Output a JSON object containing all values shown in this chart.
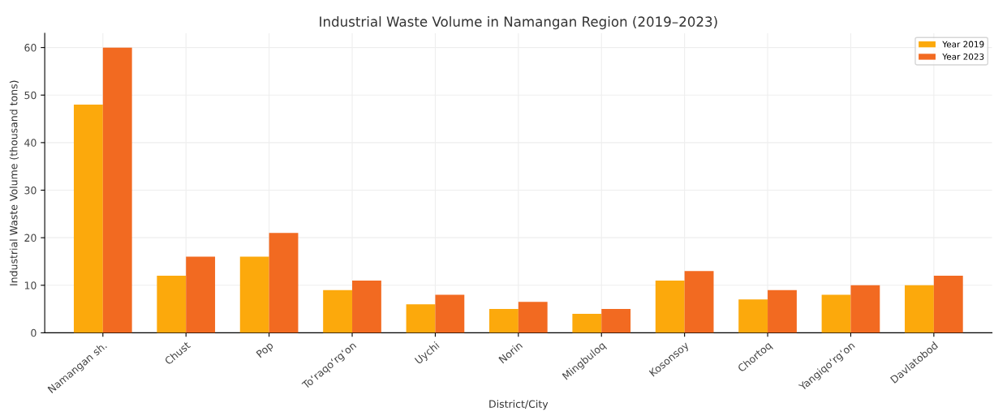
{
  "chart_data": {
    "type": "bar",
    "title": "Industrial Waste Volume in Namangan Region (2019–2023)",
    "xlabel": "District/City",
    "ylabel": "Industrial Waste Volume (thousand tons)",
    "categories": [
      "Namangan sh.",
      "Chust",
      "Pop",
      "To‘raqo‘rg‘on",
      "Uychi",
      "Norin",
      "Mingbuloq",
      "Kosonsoy",
      "Chortoq",
      "Yangiqo‘rg‘on",
      "Davlatobod"
    ],
    "series": [
      {
        "name": "Year 2019",
        "color": "#fca90c",
        "values": [
          48,
          12,
          16,
          9,
          6,
          5,
          4,
          11,
          7,
          8,
          10
        ]
      },
      {
        "name": "Year 2023",
        "color": "#f26a21",
        "values": [
          60,
          16,
          21,
          11,
          8,
          6.5,
          5,
          13,
          9,
          10,
          12
        ]
      }
    ],
    "ylim": [
      0,
      63
    ],
    "yticks": [
      0,
      10,
      20,
      30,
      40,
      50,
      60
    ],
    "grid": true,
    "legend": "top right"
  }
}
